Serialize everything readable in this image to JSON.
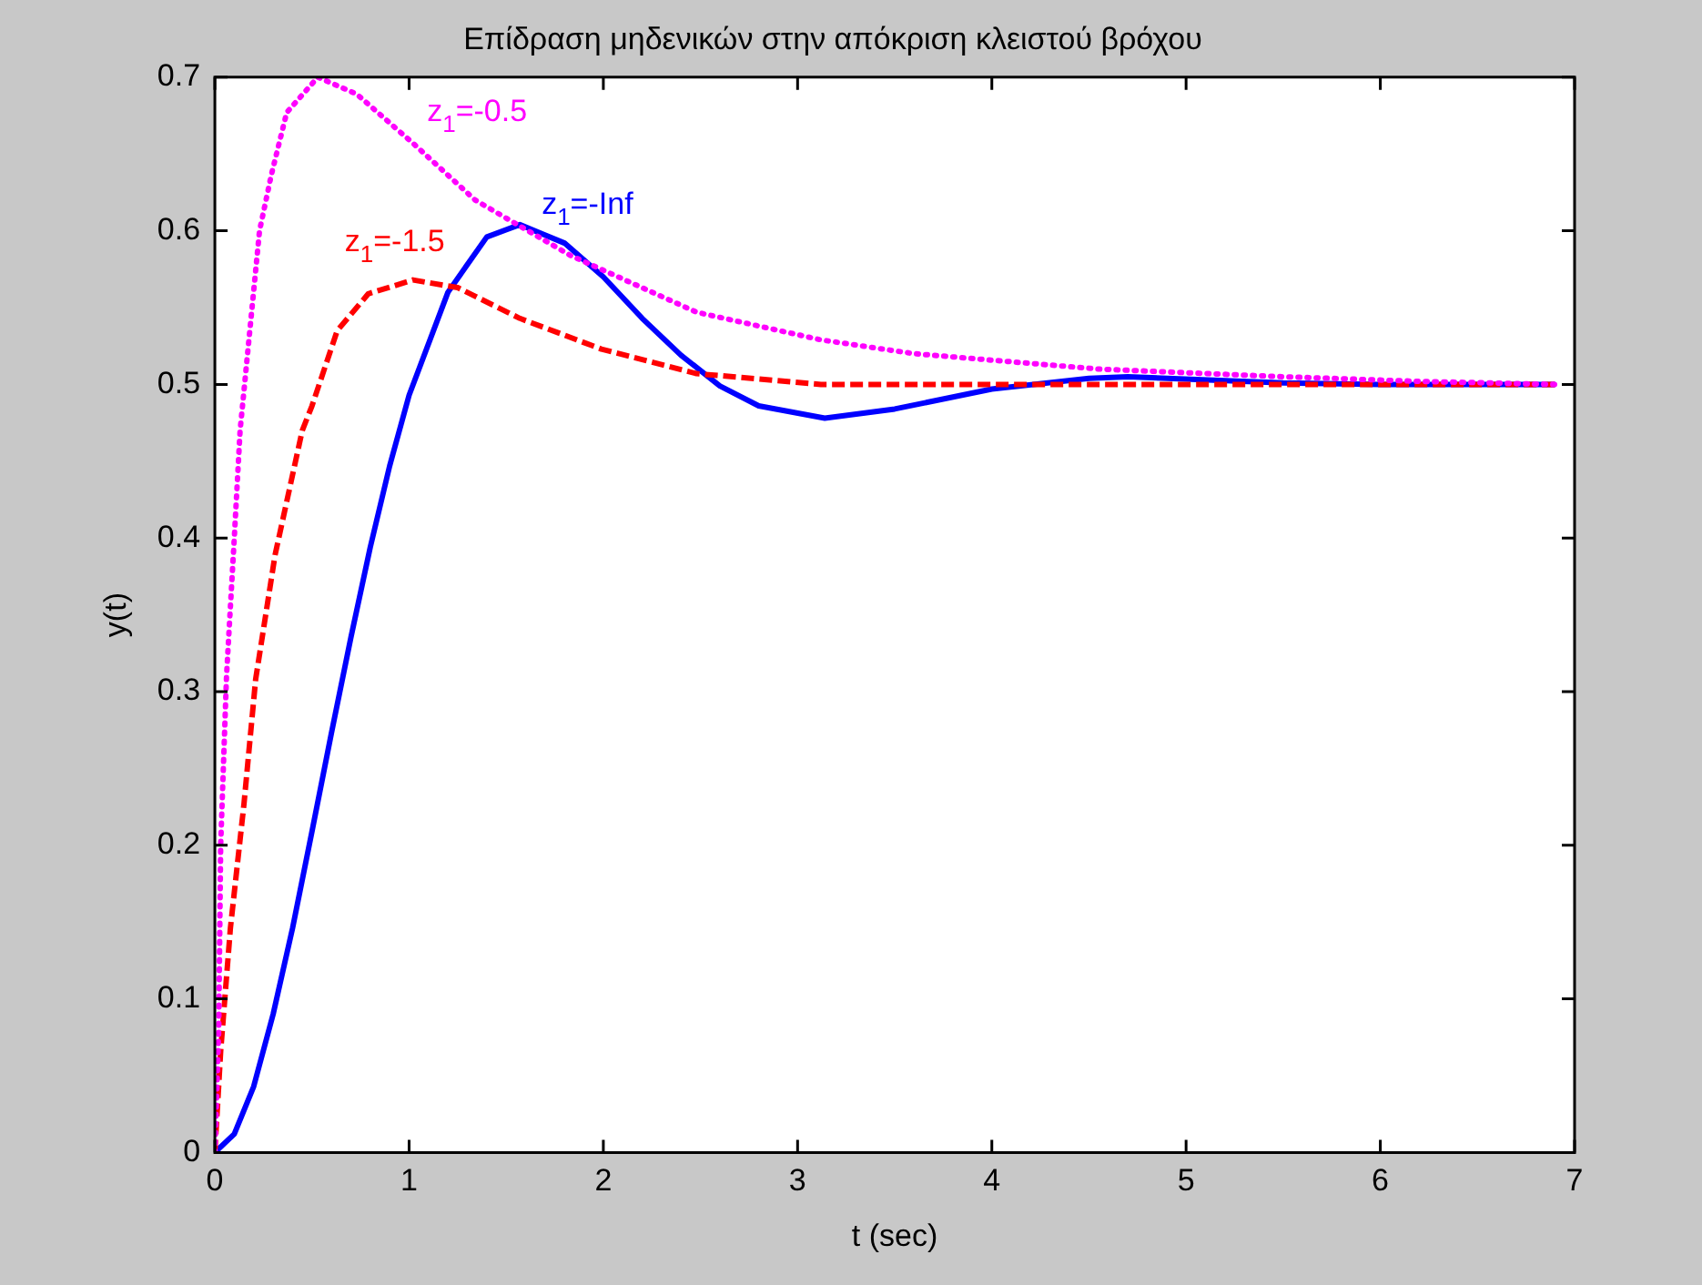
{
  "chart_data": {
    "type": "line",
    "title": "Επίδραση μηδενικών στην απόκριση κλειστού βρόχου",
    "xlabel": "t (sec)",
    "ylabel": "y(t)",
    "xlim": [
      0,
      7
    ],
    "xticks": [
      0,
      1,
      2,
      3,
      4,
      5,
      6,
      7
    ],
    "ylim": [
      0,
      0.7
    ],
    "yticks": [
      0,
      0.1,
      0.2,
      0.3,
      0.4,
      0.5,
      0.6,
      0.7
    ],
    "grid": false,
    "legend": false,
    "marker": "none",
    "series": [
      {
        "name": "z$_{1}$=-Inf",
        "color": "#0000ff",
        "line_style": "solid",
        "x": [
          0,
          0.1,
          0.2,
          0.3,
          0.4,
          0.5,
          0.6,
          0.7,
          0.8,
          0.9,
          1,
          1.2,
          1.4,
          1.57,
          1.8,
          2,
          2.2,
          2.4,
          2.6,
          2.8,
          3.14,
          3.5,
          4,
          4.5,
          4.7,
          5.5,
          6,
          6.9
        ],
        "values": [
          0,
          0.012,
          0.043,
          0.09,
          0.146,
          0.209,
          0.273,
          0.335,
          0.394,
          0.447,
          0.493,
          0.56,
          0.596,
          0.604,
          0.592,
          0.57,
          0.543,
          0.519,
          0.499,
          0.486,
          0.478,
          0.484,
          0.497,
          0.504,
          0.505,
          0.501,
          0.5,
          0.5
        ]
      },
      {
        "name": "z$_{1}$=-1.5",
        "color": "#ff0000",
        "line_style": "dashed",
        "x": [
          0,
          0.03,
          0.08,
          0.15,
          0.21,
          0.31,
          0.45,
          0.5,
          0.63,
          0.79,
          1.02,
          1.25,
          1.57,
          1.99,
          2.48,
          3.12,
          4,
          5,
          6,
          6.9
        ],
        "values": [
          0,
          0.066,
          0.146,
          0.227,
          0.308,
          0.389,
          0.47,
          0.486,
          0.535,
          0.559,
          0.568,
          0.563,
          0.543,
          0.523,
          0.507,
          0.5,
          0.5,
          0.5,
          0.5,
          0.5
        ]
      },
      {
        "name": "z$_{1}$=-0.5",
        "color": "#ff00ff",
        "line_style": "dotted",
        "x": [
          0,
          0.02,
          0.03,
          0.06,
          0.1,
          0.13,
          0.18,
          0.23,
          0.29,
          0.37,
          0.53,
          0.73,
          1.02,
          1.34,
          1.83,
          2.48,
          3.12,
          3.6,
          4.55,
          5.5,
          6.2,
          6.9
        ],
        "values": [
          0,
          0.08,
          0.2,
          0.31,
          0.4,
          0.47,
          0.535,
          0.6,
          0.636,
          0.677,
          0.7,
          0.689,
          0.657,
          0.62,
          0.584,
          0.547,
          0.529,
          0.52,
          0.51,
          0.505,
          0.502,
          0.5
        ]
      }
    ]
  }
}
